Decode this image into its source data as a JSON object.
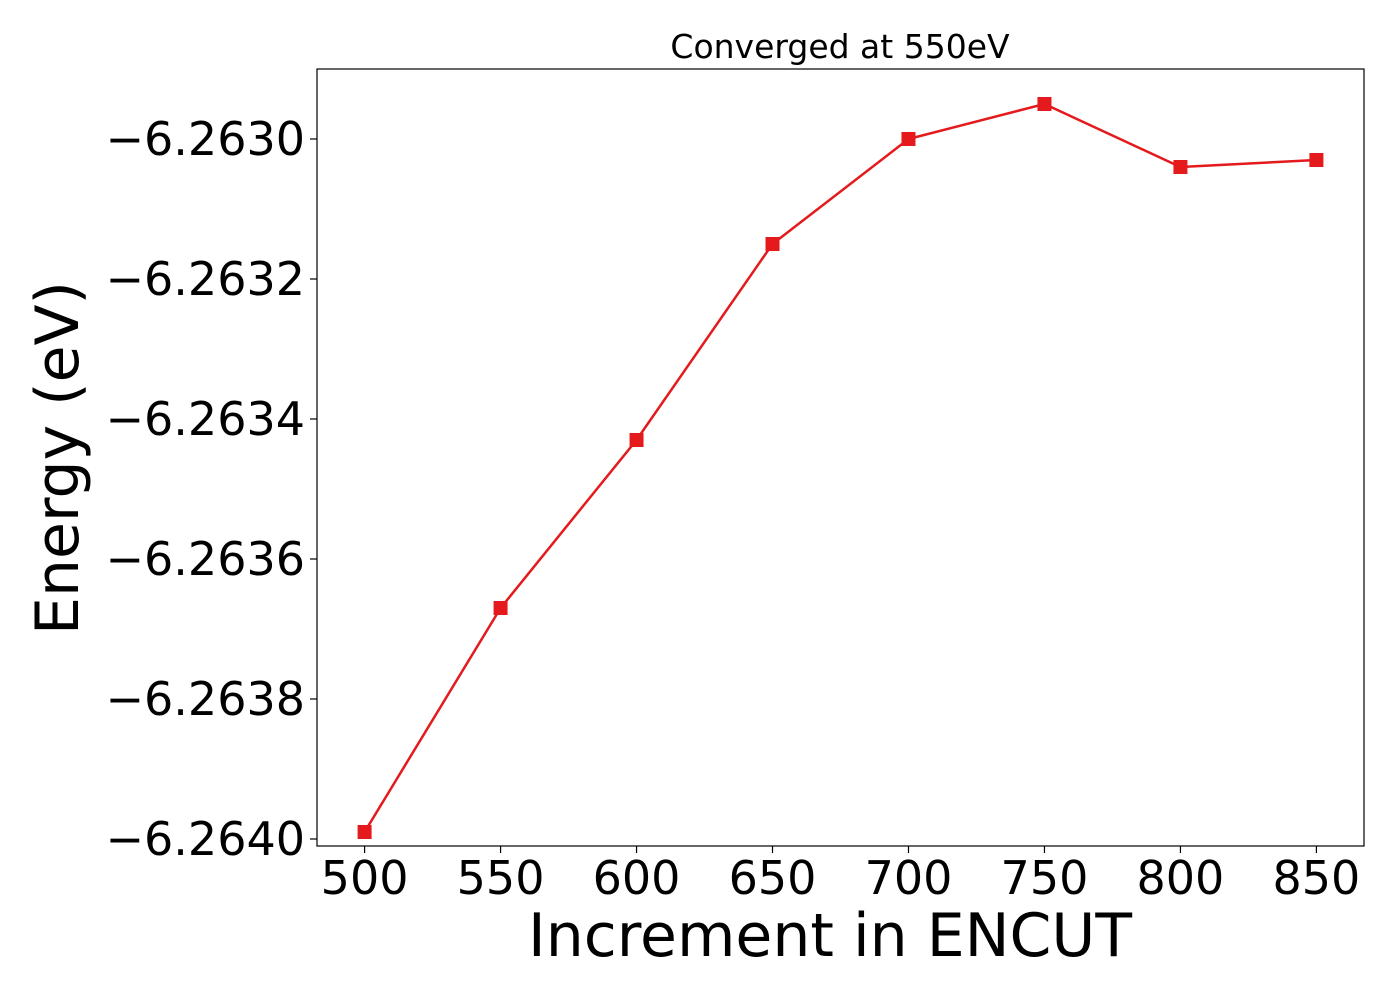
{
  "chart_data": {
    "type": "line",
    "title": "Converged at 550eV",
    "xlabel": "Increment in ENCUT",
    "ylabel": "Energy (eV)",
    "x": [
      500,
      550,
      600,
      650,
      700,
      750,
      800,
      850
    ],
    "xlim": [
      482.5,
      867.5
    ],
    "ylim": [
      -6.26401,
      -6.2629
    ],
    "xticks": [
      500,
      550,
      600,
      650,
      700,
      750,
      800,
      850
    ],
    "xtick_labels": [
      "500",
      "550",
      "600",
      "650",
      "700",
      "750",
      "800",
      "850"
    ],
    "yticks": [
      -6.264,
      -6.2638,
      -6.2636,
      -6.2634,
      -6.2632,
      -6.263
    ],
    "ytick_labels": [
      "−6.2640",
      "−6.2638",
      "−6.2636",
      "−6.2634",
      "−6.2632",
      "−6.2630"
    ],
    "grid": false,
    "series": [
      {
        "values": [
          -6.26399,
          -6.26367,
          -6.26343,
          -6.26315,
          -6.263,
          -6.26295,
          -6.26304,
          -6.26303
        ],
        "color": "#e41a1c",
        "marker": "square"
      }
    ]
  }
}
